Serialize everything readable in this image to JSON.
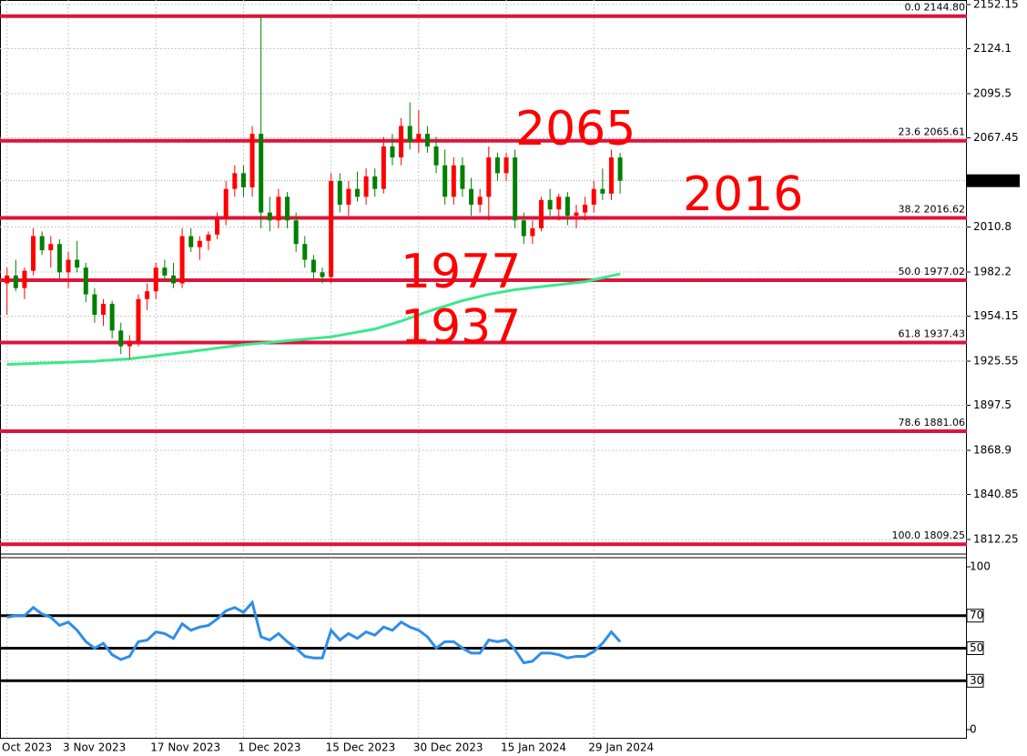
{
  "chart_data": [
    {
      "type": "candlestick",
      "categories": [
        "Oct 2023",
        null,
        null,
        null,
        null,
        null,
        null,
        "3 Nov 2023",
        null,
        null,
        null,
        null,
        null,
        null,
        null,
        null,
        null,
        "17 Nov 2023",
        null,
        null,
        null,
        null,
        null,
        null,
        null,
        null,
        null,
        "1 Dec 2023",
        null,
        null,
        null,
        null,
        null,
        null,
        null,
        null,
        null,
        "15 Dec 2023",
        null,
        null,
        null,
        null,
        null,
        null,
        null,
        null,
        null,
        "30 Dec 2023",
        null,
        null,
        null,
        null,
        null,
        null,
        null,
        null,
        null,
        "15 Jan 2024",
        null,
        null,
        null,
        null,
        null,
        null,
        null,
        null,
        null,
        "29 Jan 2024",
        null,
        null,
        null
      ],
      "candles": {
        "open": [
          1975,
          1980,
          1972,
          1983,
          2005,
          1996,
          2000,
          1982,
          1990,
          1985,
          1968,
          1955,
          1962,
          1945,
          1935,
          1938,
          1965,
          1970,
          1985,
          1980,
          1975,
          2005,
          1998,
          2002,
          2006,
          2016,
          2035,
          2045,
          2036,
          2070,
          2020,
          2015,
          2030,
          2015,
          2000,
          1990,
          1982,
          1979,
          2040,
          2025,
          2035,
          2030,
          2043,
          2035,
          2062,
          2055,
          2075,
          2065,
          2070,
          2062,
          2050,
          2030,
          2050,
          2035,
          2025,
          2030,
          2055,
          2045,
          2055,
          2015,
          2005,
          2010,
          2028,
          2022,
          2030,
          2018,
          2020,
          2025,
          2035,
          2032,
          2055
        ],
        "high": [
          1985,
          1990,
          1985,
          2010,
          2008,
          2005,
          2003,
          1995,
          2002,
          1988,
          1972,
          1965,
          1964,
          1950,
          1942,
          1968,
          1975,
          1988,
          1990,
          1988,
          2010,
          2010,
          2005,
          2008,
          2020,
          2040,
          2050,
          2050,
          2075,
          2144.8,
          2030,
          2035,
          2033,
          2020,
          2005,
          1993,
          1985,
          2045,
          2045,
          2040,
          2046,
          2048,
          2048,
          2068,
          2070,
          2080,
          2090,
          2085,
          2075,
          2068,
          2060,
          2055,
          2055,
          2042,
          2035,
          2062,
          2058,
          2058,
          2060,
          2020,
          2015,
          2030,
          2035,
          2032,
          2033,
          2025,
          2030,
          2040,
          2048,
          2060,
          2058
        ],
        "low": [
          1955,
          1970,
          1965,
          1980,
          1993,
          1985,
          1978,
          1972,
          1982,
          1963,
          1950,
          1948,
          1940,
          1930,
          1927,
          1935,
          1958,
          1965,
          1976,
          1972,
          1972,
          1995,
          1990,
          1996,
          2003,
          2012,
          2030,
          2030,
          2030,
          2010,
          2008,
          2010,
          2010,
          1995,
          1985,
          1978,
          1975,
          1975,
          2020,
          2018,
          2027,
          2025,
          2030,
          2032,
          2050,
          2050,
          2060,
          2058,
          2058,
          2045,
          2025,
          2025,
          2030,
          2018,
          2020,
          2015,
          2040,
          2040,
          2010,
          2000,
          2000,
          2008,
          2018,
          2015,
          2012,
          2010,
          2015,
          2020,
          2028,
          2028,
          2032
        ],
        "close": [
          1980,
          1972,
          1983,
          2005,
          1996,
          2000,
          1982,
          1990,
          1985,
          1968,
          1955,
          1962,
          1945,
          1935,
          1938,
          1965,
          1970,
          1985,
          1980,
          1975,
          2005,
          1998,
          2002,
          2006,
          2016,
          2035,
          2045,
          2036,
          2070,
          2020,
          2015,
          2030,
          2015,
          2000,
          1990,
          1982,
          1979,
          2040,
          2025,
          2035,
          2030,
          2043,
          2035,
          2062,
          2055,
          2075,
          2065,
          2070,
          2062,
          2050,
          2030,
          2050,
          2035,
          2025,
          2030,
          2055,
          2045,
          2055,
          2015,
          2005,
          2010,
          2028,
          2022,
          2030,
          2018,
          2020,
          2025,
          2035,
          2032,
          2055,
          2040.21
        ]
      },
      "up_color": "#ff0000",
      "down_color": "#008000",
      "ma": {
        "color": "#3ce88c",
        "values": [
          1923.5,
          1923.7,
          1923.9,
          1924.1,
          1924.3,
          1924.5,
          1924.7,
          1924.9,
          1925.1,
          1925.3,
          1925.5,
          1925.9,
          1926.3,
          1926.7,
          1927,
          1927.7,
          1928.3,
          1929,
          1929.7,
          1930.3,
          1931,
          1931.7,
          1932.4,
          1933.1,
          1933.9,
          1934.6,
          1935.3,
          1936,
          1936.5,
          1937,
          1937.5,
          1938,
          1938.5,
          1939,
          1939.5,
          1940,
          1940.5,
          1941,
          1942,
          1943,
          1944,
          1945,
          1946,
          1947.7,
          1949.3,
          1951,
          1953,
          1955,
          1957,
          1958.8,
          1960.5,
          1962.3,
          1964,
          1965.3,
          1966.7,
          1968,
          1969,
          1970,
          1971,
          1971.6,
          1972.3,
          1972.9,
          1973.5,
          1974.1,
          1974.8,
          1975.4,
          1976,
          1977.3,
          1978.5,
          1979.8,
          1981
        ]
      },
      "fib_color": "#dc143c",
      "fib_levels": [
        {
          "value": 2144.8,
          "label": "0.0 2144.80"
        },
        {
          "value": 2065.61,
          "label": "23.6 2065.61"
        },
        {
          "value": 2016.62,
          "label": "38.2 2016.62"
        },
        {
          "value": 1977.02,
          "label": "50.0 1977.02"
        },
        {
          "value": 1937.43,
          "label": "61.8 1937.43"
        },
        {
          "value": 1881.06,
          "label": "78.6 1881.06"
        },
        {
          "value": 1809.25,
          "label": "100.0 1809.25"
        }
      ],
      "annotations": [
        "2065",
        "2016",
        "1977",
        "1937"
      ],
      "last_price": 2040.21,
      "ylim": [
        1803.58,
        2155.04
      ],
      "yticks": [
        2152.15,
        2124.1,
        2095.5,
        2067.45,
        2010.8,
        1982.2,
        1954.15,
        1925.55,
        1897.5,
        1868.9,
        1840.85,
        1812.25
      ],
      "grid": true
    },
    {
      "type": "line",
      "color": "#2f8ee8",
      "values": [
        69,
        70,
        70,
        75,
        71,
        69,
        64,
        66,
        61,
        54,
        50,
        53,
        46,
        43,
        45,
        54,
        55,
        60,
        59,
        56,
        65,
        61,
        63,
        64,
        68,
        73,
        75,
        72,
        78,
        57,
        55,
        59,
        54,
        50,
        45,
        44,
        44,
        61,
        55,
        59,
        56,
        60,
        58,
        63,
        61,
        66,
        63,
        61,
        57,
        50,
        54,
        54,
        50,
        47,
        47,
        55,
        54,
        55,
        49,
        41,
        42,
        47,
        47,
        46,
        44,
        45,
        45,
        48,
        53,
        60,
        54
      ],
      "levels": [
        70,
        50,
        30
      ],
      "ylim": [
        -5.6,
        105.6
      ],
      "yticks": [
        100,
        70,
        50,
        30,
        0
      ]
    }
  ]
}
